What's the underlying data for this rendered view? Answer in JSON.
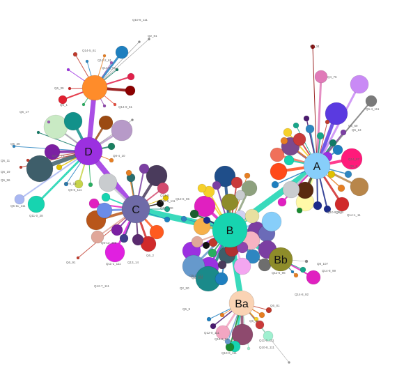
{
  "graph": {
    "hubs": [
      {
        "id": "A",
        "label": "A",
        "color": "#87CEFA"
      },
      {
        "id": "B",
        "label": "B",
        "color": "#17D4B0"
      },
      {
        "id": "Bb",
        "label": "Bb",
        "color": "#8E8C2A"
      },
      {
        "id": "Ba",
        "label": "Ba",
        "color": "#FAD3B4"
      },
      {
        "id": "C",
        "label": "C",
        "color": "#6F6BA8"
      },
      {
        "id": "D",
        "label": "D",
        "color": "#9B30E0"
      },
      {
        "id": "O",
        "label": "",
        "color": "#FF8C2A"
      }
    ],
    "leaf_labels": [
      "Q10-6_111",
      "Q2_81",
      "Q14-5_61",
      "Q14-2_61",
      "Q14-6_66",
      "Q6_39",
      "Q6_1",
      "Q14-9_61",
      "Q6_17",
      "Q6_39",
      "Q2-1_76",
      "Q6_11",
      "Q6_19",
      "Q6_96",
      "Q5-11_111",
      "Q11-0_28",
      "Q6-6_111",
      "Q9-8_18",
      "Q8-4_10",
      "Q6_69",
      "Q6_13",
      "Q6-4_111",
      "Q4_76",
      "Q4_34",
      "Q14_87",
      "Q6_8",
      "Q14-1_11",
      "Q10-9_111",
      "Q6_3",
      "Q11-9_111",
      "Q12-6_85",
      "Q13_100",
      "Q13-8",
      "Q6_2",
      "Q13_14",
      "Q11-1_111",
      "Q6_91",
      "Q12-7_111",
      "Q6-12_111",
      "Q5-1_111",
      "Q11-6_96",
      "Q6_100",
      "Q14-8_92",
      "Q8_107",
      "Q14-8_99",
      "Q2_50",
      "Q6_9",
      "Q6_81",
      "Q6_34",
      "Q12-0_111",
      "Q14-9_81",
      "Q10-0_111",
      "Q11-0_111",
      "Q10-8_111"
    ]
  }
}
